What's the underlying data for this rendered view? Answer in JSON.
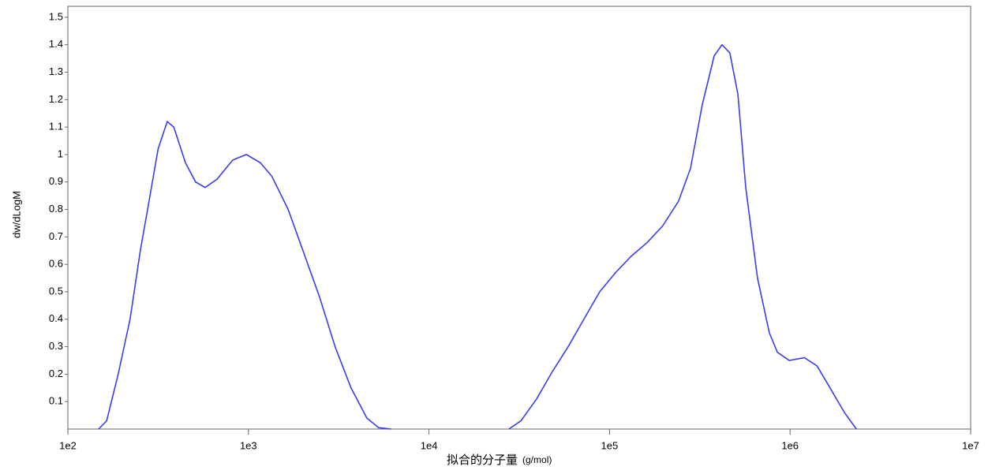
{
  "chart_data": {
    "type": "line",
    "ylabel": "dw/dLogM",
    "xlabel": "拟合的分子量",
    "xlabel_unit": "(g/mol)",
    "xscale": "log",
    "xlim": [
      100,
      10000000
    ],
    "xticks": [
      {
        "value": 100,
        "label": "1e2"
      },
      {
        "value": 1000,
        "label": "1e3"
      },
      {
        "value": 10000,
        "label": "1e4"
      },
      {
        "value": 100000,
        "label": "1e5"
      },
      {
        "value": 1000000,
        "label": "1e6"
      },
      {
        "value": 10000000,
        "label": "1e7"
      }
    ],
    "ylim": [
      0,
      1.54
    ],
    "yticks": [
      0.1,
      0.2,
      0.3,
      0.4,
      0.5,
      0.6,
      0.7,
      0.8,
      0.9,
      1,
      1.1,
      1.2,
      1.3,
      1.4,
      1.5
    ],
    "grid": false,
    "series": [
      {
        "color": "#3b3bf0",
        "x": [
          148,
          164,
          190,
          221,
          252,
          285,
          316,
          355,
          386,
          448,
          510,
          576,
          670,
          819,
          974,
          1165,
          1350,
          1660,
          2030,
          2480,
          3020,
          3700,
          4530,
          5260,
          6160,
          10000,
          27700,
          32300,
          39500,
          48300,
          59000,
          72100,
          88200,
          108000,
          132000,
          162000,
          197000,
          241000,
          281000,
          326000,
          380000,
          420000,
          464000,
          514000,
          568000,
          660000,
          768000,
          850000,
          989000,
          1200000,
          1410000,
          1630000,
          2000000,
          2330000
        ],
        "values": [
          0,
          0.03,
          0.2,
          0.4,
          0.65,
          0.85,
          1.02,
          1.12,
          1.1,
          0.97,
          0.9,
          0.88,
          0.91,
          0.98,
          1.0,
          0.97,
          0.92,
          0.8,
          0.64,
          0.48,
          0.3,
          0.15,
          0.04,
          0.005,
          0,
          null,
          0,
          0.03,
          0.11,
          0.21,
          0.3,
          0.4,
          0.5,
          0.57,
          0.63,
          0.68,
          0.74,
          0.83,
          0.95,
          1.18,
          1.36,
          1.4,
          1.37,
          1.22,
          0.88,
          0.55,
          0.35,
          0.28,
          0.25,
          0.26,
          0.23,
          0.16,
          0.06,
          0
        ]
      }
    ]
  }
}
